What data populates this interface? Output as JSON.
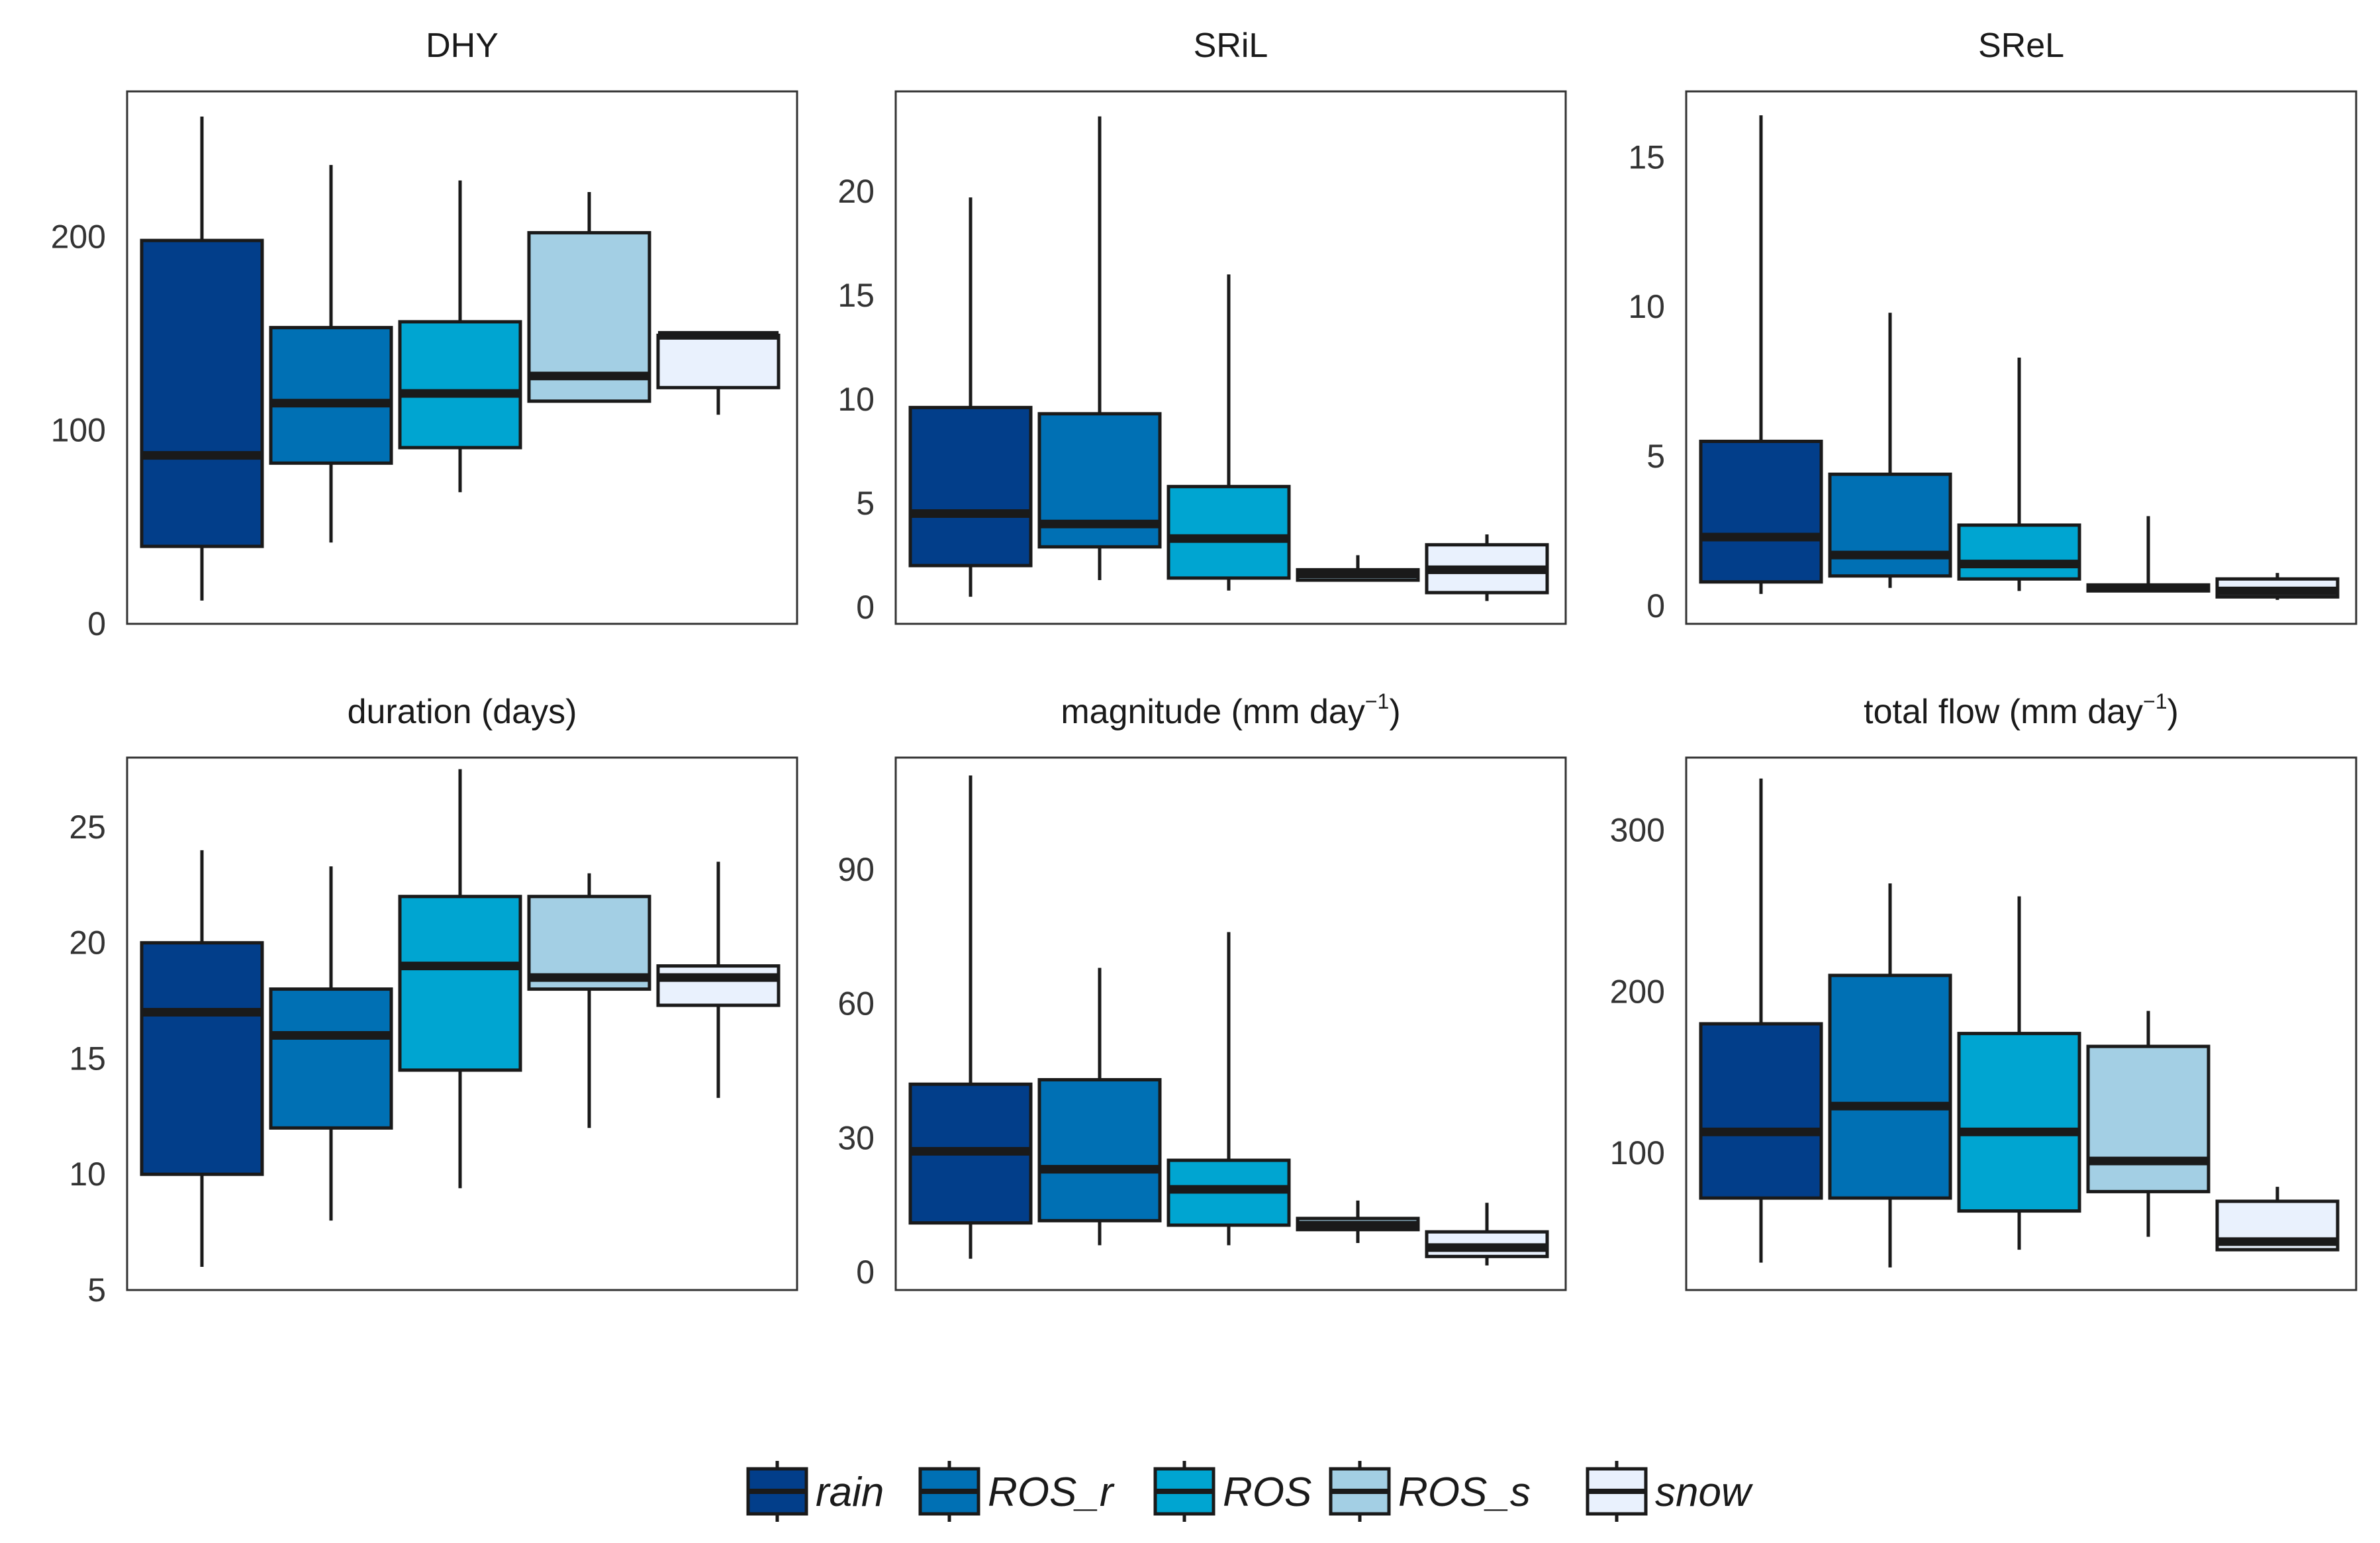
{
  "chart_data": {
    "type": "boxplot",
    "categories": [
      "rain",
      "ROS_r",
      "ROS",
      "ROS_s",
      "snow"
    ],
    "colors": {
      "rain": "#023e8a",
      "ROS_r": "#0070b4",
      "ROS": "#00a5d1",
      "ROS_s": "#a3cfe4",
      "snow": "#e9f1fd"
    },
    "legend": {
      "position": "bottom-center",
      "entries": [
        "rain",
        "ROS_r",
        "ROS",
        "ROS_s",
        "snow"
      ]
    },
    "panels": [
      {
        "title": "DHY",
        "title_base": "DHY",
        "title_sup": "",
        "title_tail": "",
        "ylim": [
          0,
          275
        ],
        "yticks": [
          0,
          100,
          200
        ],
        "boxes": [
          {
            "category": "rain",
            "min": 12,
            "q1": 40,
            "median": 87,
            "q3": 198,
            "max": 262
          },
          {
            "category": "ROS_r",
            "min": 42,
            "q1": 83,
            "median": 114,
            "q3": 153,
            "max": 237
          },
          {
            "category": "ROS",
            "min": 68,
            "q1": 91,
            "median": 119,
            "q3": 156,
            "max": 229
          },
          {
            "category": "ROS_s",
            "min": 115,
            "q1": 115,
            "median": 128,
            "q3": 202,
            "max": 223
          },
          {
            "category": "snow",
            "min": 108,
            "q1": 122,
            "median": 149,
            "q3": 149,
            "max": 149
          }
        ]
      },
      {
        "title": "SRiL",
        "title_base": "SRiL",
        "title_sup": "",
        "title_tail": "",
        "ylim": [
          -0.8,
          24.8
        ],
        "yticks": [
          0,
          5,
          10,
          15,
          20
        ],
        "boxes": [
          {
            "category": "rain",
            "min": 0.5,
            "q1": 2.0,
            "median": 4.5,
            "q3": 9.6,
            "max": 19.7
          },
          {
            "category": "ROS_r",
            "min": 1.3,
            "q1": 2.9,
            "median": 4.0,
            "q3": 9.3,
            "max": 23.6
          },
          {
            "category": "ROS",
            "min": 0.8,
            "q1": 1.4,
            "median": 3.3,
            "q3": 5.8,
            "max": 16.0
          },
          {
            "category": "ROS_s",
            "min": 1.3,
            "q1": 1.3,
            "median": 1.6,
            "q3": 1.8,
            "max": 2.5
          },
          {
            "category": "snow",
            "min": 0.3,
            "q1": 0.7,
            "median": 1.8,
            "q3": 3.0,
            "max": 3.5
          }
        ]
      },
      {
        "title": "SReL",
        "title_base": "SReL",
        "title_sup": "",
        "title_tail": "",
        "ylim": [
          -0.6,
          17.2
        ],
        "yticks": [
          0,
          5,
          10,
          15
        ],
        "boxes": [
          {
            "category": "rain",
            "min": 0.4,
            "q1": 0.8,
            "median": 2.3,
            "q3": 5.5,
            "max": 16.4
          },
          {
            "category": "ROS_r",
            "min": 0.6,
            "q1": 1.0,
            "median": 1.7,
            "q3": 4.4,
            "max": 9.8
          },
          {
            "category": "ROS",
            "min": 0.5,
            "q1": 0.9,
            "median": 1.4,
            "q3": 2.7,
            "max": 8.3
          },
          {
            "category": "ROS_s",
            "min": 0.5,
            "q1": 0.5,
            "median": 0.6,
            "q3": 0.7,
            "max": 3.0
          },
          {
            "category": "snow",
            "min": 0.2,
            "q1": 0.3,
            "median": 0.5,
            "q3": 0.9,
            "max": 1.1
          }
        ]
      },
      {
        "title": "duration (days)",
        "title_base": "duration (days)",
        "title_sup": "",
        "title_tail": "",
        "ylim": [
          5,
          28
        ],
        "yticks": [
          5,
          10,
          15,
          20,
          25
        ],
        "boxes": [
          {
            "category": "rain",
            "min": 6,
            "q1": 10,
            "median": 17,
            "q3": 20,
            "max": 24
          },
          {
            "category": "ROS_r",
            "min": 8,
            "q1": 12,
            "median": 16,
            "q3": 18,
            "max": 23.3
          },
          {
            "category": "ROS",
            "min": 9.4,
            "q1": 14.5,
            "median": 19,
            "q3": 22,
            "max": 27.5
          },
          {
            "category": "ROS_s",
            "min": 12,
            "q1": 18,
            "median": 18.5,
            "q3": 22,
            "max": 23
          },
          {
            "category": "snow",
            "min": 13.3,
            "q1": 17.3,
            "median": 18.5,
            "q3": 19,
            "max": 23.5
          }
        ]
      },
      {
        "title": "magnitude (mm day−1)",
        "title_base": "magnitude (mm day",
        "title_sup": "−1",
        "title_tail": ")",
        "ylim": [
          -4,
          115
        ],
        "yticks": [
          0,
          30,
          60,
          90
        ],
        "boxes": [
          {
            "category": "rain",
            "min": 3,
            "q1": 11,
            "median": 27,
            "q3": 42,
            "max": 111
          },
          {
            "category": "ROS_r",
            "min": 6,
            "q1": 11.5,
            "median": 23,
            "q3": 43,
            "max": 68
          },
          {
            "category": "ROS",
            "min": 6,
            "q1": 10.5,
            "median": 18.5,
            "q3": 25,
            "max": 76
          },
          {
            "category": "ROS_s",
            "min": 6.5,
            "q1": 9.5,
            "median": 10.5,
            "q3": 12,
            "max": 16
          },
          {
            "category": "snow",
            "min": 1.5,
            "q1": 3.5,
            "median": 5.5,
            "q3": 9,
            "max": 15.5
          }
        ]
      },
      {
        "title": "total flow (mm day−1)",
        "title_base": "total flow (mm day",
        "title_sup": "−1",
        "title_tail": ")",
        "ylim": [
          15,
          345
        ],
        "yticks": [
          100,
          200,
          300
        ],
        "boxes": [
          {
            "category": "rain",
            "min": 32,
            "q1": 72,
            "median": 113,
            "q3": 180,
            "max": 332
          },
          {
            "category": "ROS_r",
            "min": 29,
            "q1": 72,
            "median": 129,
            "q3": 210,
            "max": 267
          },
          {
            "category": "ROS",
            "min": 40,
            "q1": 64,
            "median": 113,
            "q3": 174,
            "max": 259
          },
          {
            "category": "ROS_s",
            "min": 48,
            "q1": 76,
            "median": 95,
            "q3": 166,
            "max": 188
          },
          {
            "category": "snow",
            "min": 40,
            "q1": 40,
            "median": 45,
            "q3": 70,
            "max": 79
          }
        ]
      }
    ]
  }
}
